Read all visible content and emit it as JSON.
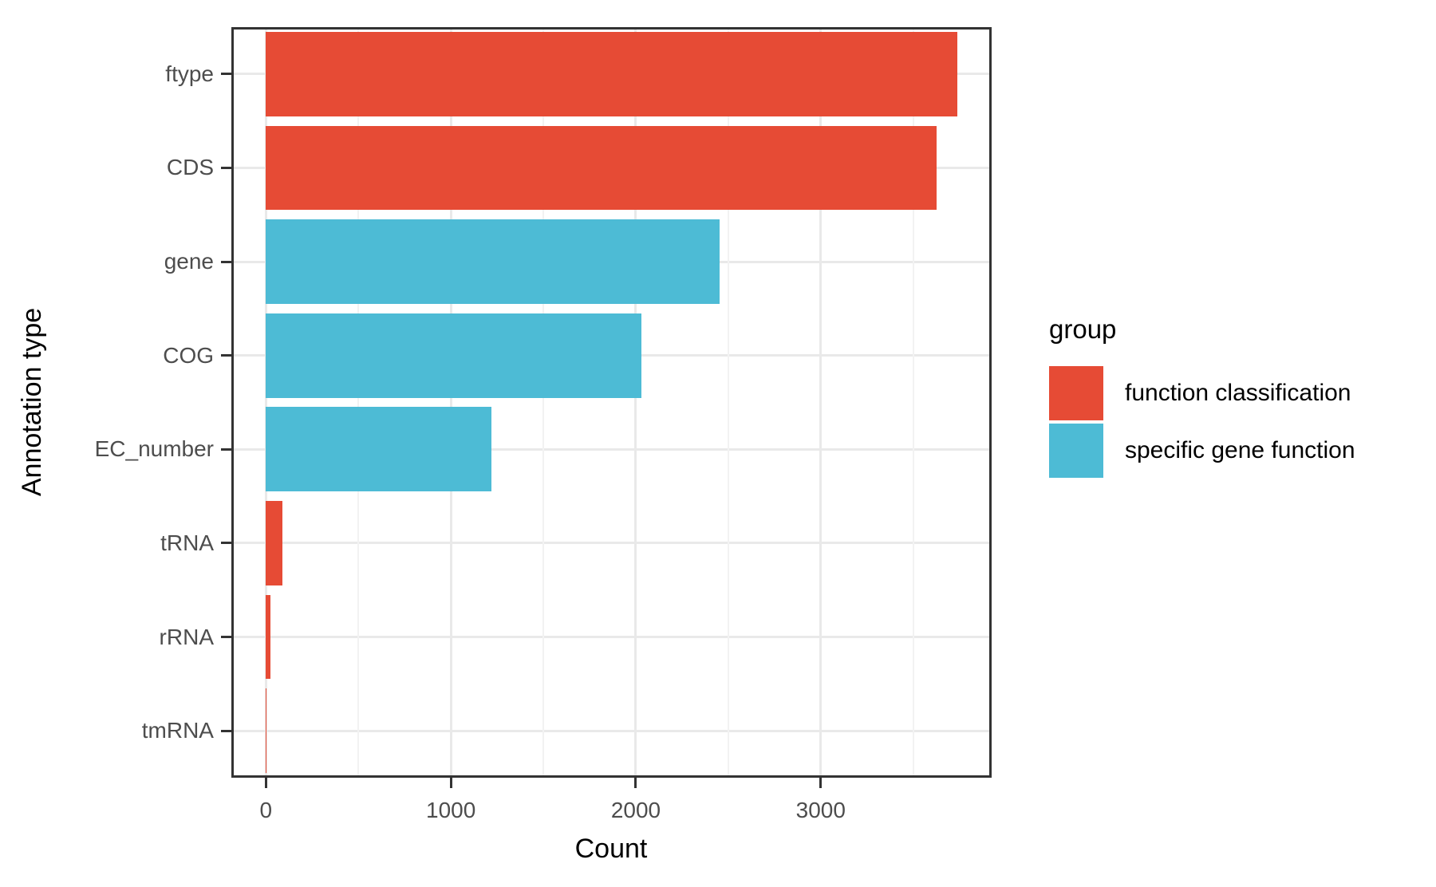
{
  "chart_data": {
    "type": "bar",
    "orientation": "horizontal",
    "title": "",
    "xlabel": "Count",
    "ylabel": "Annotation type",
    "categories": [
      "ftype",
      "CDS",
      "gene",
      "COG",
      "EC_number",
      "tRNA",
      "rRNA",
      "tmRNA"
    ],
    "values": [
      3737,
      3625,
      2455,
      2030,
      1220,
      87,
      24,
      1
    ],
    "point_groups": [
      "function classification",
      "function classification",
      "specific gene function",
      "specific gene function",
      "specific gene function",
      "function classification",
      "function classification",
      "function classification"
    ],
    "group_colors": {
      "function classification": "#E64B35",
      "specific gene function": "#4DBBD5"
    },
    "x_ticks": [
      0,
      1000,
      2000,
      3000
    ],
    "x_tick_labels": [
      "0",
      "1000",
      "2000",
      "3000"
    ],
    "x_minor_ticks": [
      500,
      1500,
      2500,
      3500
    ],
    "xlim": [
      -187,
      3924
    ],
    "grid": "major and minor vertical, major horizontal",
    "bar_width_fraction": 0.9,
    "panel_border_color": "#333333",
    "axis_text_color": "#4D4D4D",
    "gridline_color": "#E9E9E9",
    "legend": {
      "title": "group",
      "position": "right",
      "items": [
        {
          "label": "function classification",
          "color": "#E64B35"
        },
        {
          "label": "specific gene function",
          "color": "#4DBBD5"
        }
      ]
    }
  }
}
